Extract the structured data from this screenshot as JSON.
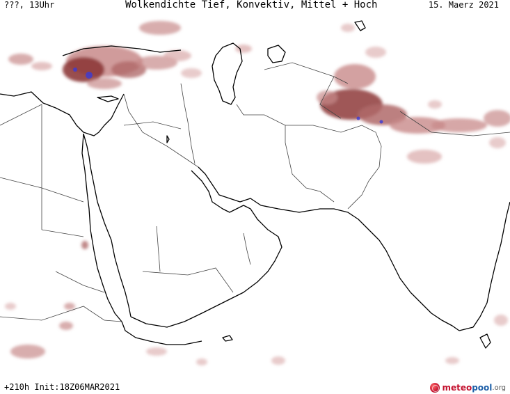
{
  "header": {
    "left": "???, 13Uhr",
    "title": "Wolkendichte  Tief, Konvektiv, Mittel + Hoch",
    "date": "15. Maerz 2021"
  },
  "footer": {
    "run_info": "+210h Init:18Z06MAR2021"
  },
  "logo": {
    "part1": "meteo",
    "part2": "pool",
    "part3": ".org"
  },
  "colors": {
    "cloud_light": "#e8c9c9",
    "cloud_mid": "#c88a8a",
    "cloud_dark": "#8e3b3b",
    "convective": "#3b3bd6",
    "coast": "#000000",
    "border": "#555555"
  }
}
